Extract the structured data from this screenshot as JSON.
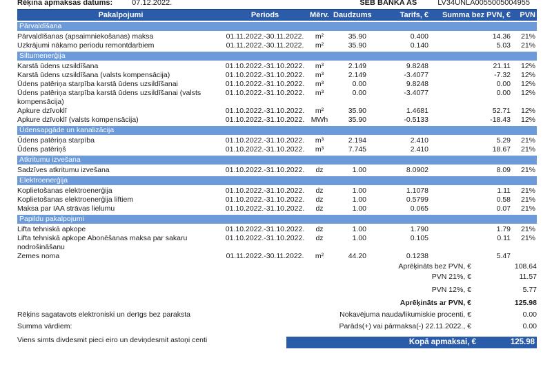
{
  "top": {
    "label": "Rēķina apmaksas datums:",
    "date": "07.12.2022.",
    "bank": "SEB BANKA AS",
    "iban": "LV34UNLA0055005004955"
  },
  "table": {
    "headers": [
      "Pakalpojumi",
      "Periods",
      "Mērv.",
      "Daudzums",
      "Tarifs, €",
      "Summa bez PVN, €",
      "PVN"
    ],
    "sections": [
      {
        "title": "Pārvaldīšana",
        "rows": [
          [
            "Pārvaldīšanas (apsaimniekošanas) maksa",
            "01.11.2022.-30.11.2022.",
            "m²",
            "35.90",
            "0.400",
            "14.36",
            "21%"
          ],
          [
            "Uzkrājumi nākamo periodu remontdarbiem",
            "01.11.2022.-30.11.2022.",
            "m²",
            "35.90",
            "0.140",
            "5.03",
            "21%"
          ]
        ]
      },
      {
        "title": "Siltumenerģija",
        "rows": [
          [
            "Karstā ūdens uzsildīšana",
            "01.10.2022.-31.10.2022.",
            "m³",
            "2.149",
            "9.8248",
            "21.11",
            "12%"
          ],
          [
            "Karstā ūdens uzsildīšana (valsts kompensācija)",
            "01.10.2022.-31.10.2022.",
            "m³",
            "2.149",
            "-3.4077",
            "-7.32",
            "12%"
          ],
          [
            "Ūdens patēriņa starpība karstā ūdens uzsildīšanai",
            "01.10.2022.-31.10.2022.",
            "m³",
            "0.00",
            "9.8248",
            "0.00",
            "12%"
          ],
          [
            "Ūdens patēriņa starpība karstā ūdens uzsildīšanai (valsts kompensācija)",
            "01.10.2022.-31.10.2022.",
            "m³",
            "0.00",
            "-3.4077",
            "0.00",
            "12%"
          ],
          [
            "Apkure dzīvoklī",
            "01.10.2022.-31.10.2022.",
            "m²",
            "35.90",
            "1.4681",
            "52.71",
            "12%"
          ],
          [
            "Apkure dzīvoklī (valsts kompensācija)",
            "01.10.2022.-31.10.2022.",
            "MWh",
            "35.90",
            "-0.5133",
            "-18.43",
            "12%"
          ]
        ]
      },
      {
        "title": "Ūdensapgāde un kanalizācija",
        "rows": [
          [
            "Ūdens patēriņa starpība",
            "01.10.2022.-31.10.2022.",
            "m³",
            "2.194",
            "2.410",
            "5.29",
            "21%"
          ],
          [
            "Ūdens patēriņš",
            "01.10.2022.-31.10.2022.",
            "m³",
            "7.745",
            "2.410",
            "18.67",
            "21%"
          ]
        ]
      },
      {
        "title": "Atkritumu izvešana",
        "rows": [
          [
            "Sadzīves atkritumu izvešana",
            "01.10.2022.-31.10.2022.",
            "dz",
            "1.00",
            "8.0902",
            "8.09",
            "21%"
          ]
        ]
      },
      {
        "title": "Elektroenerģija",
        "rows": [
          [
            "Koplietošanas elektroenerģija",
            "01.10.2022.-31.10.2022.",
            "dz",
            "1.00",
            "1.1078",
            "1.11",
            "21%"
          ],
          [
            "Koplietošanas elektroenerģija liftiem",
            "01.10.2022.-31.10.2022.",
            "dz",
            "1.00",
            "0.5799",
            "0.58",
            "21%"
          ],
          [
            "Maksa par IAA strāvas lielumu",
            "01.10.2022.-31.10.2022.",
            "dz",
            "1.00",
            "0.065",
            "0.07",
            "21%"
          ]
        ]
      },
      {
        "title": "Papildu pakalpojumi",
        "rows": [
          [
            "Lifta tehniskā apkope",
            "01.10.2022.-31.10.2022.",
            "dz",
            "1.00",
            "1.790",
            "1.79",
            "21%"
          ],
          [
            "Lifta tehniskā apkope Abonēšanas maksa par sakaru nodrošināšanu",
            "01.10.2022.-31.10.2022.",
            "dz",
            "1.00",
            "0.105",
            "0.11",
            "21%"
          ],
          [
            "Zemes noma",
            "01.11.2022.-30.11.2022.",
            "m²",
            "44.20",
            "0.1238",
            "5.47",
            ""
          ]
        ]
      }
    ]
  },
  "summary": [
    {
      "label": "Aprēķināts bez PVN, €",
      "value": "108.64",
      "bold": false,
      "gap": false
    },
    {
      "label": "PVN 21%, €",
      "value": "11.57",
      "bold": false,
      "gap": false
    },
    {
      "label": "PVN 12%, €",
      "value": "5.77",
      "bold": false,
      "gap": true
    },
    {
      "label": "Aprēķināts ar PVN, €",
      "value": "125.98",
      "bold": true,
      "gap": true
    }
  ],
  "bottom": {
    "note_electronic": "Rēķins sagatavots elektroniski un derīgs bez paraksta",
    "late_fee_label": "Nokavējuma nauda/likumiskie procenti, €",
    "late_fee_value": "0.00",
    "words_label": "Summa vārdiem:",
    "debt_label": "Parāds(+) vai pārmaksa(-) 22.11.2022., €",
    "debt_value": "0.00",
    "amount_in_words": "Viens simts divdesmit pieci eiro un deviņdesmit astoņi centi",
    "total_label": "Kopā apmaksai, €",
    "total_value": "125.98"
  },
  "colors": {
    "header_blue": "#2a5caa",
    "band_blue": "#6d9ad9",
    "text": "#1a1a1a"
  }
}
